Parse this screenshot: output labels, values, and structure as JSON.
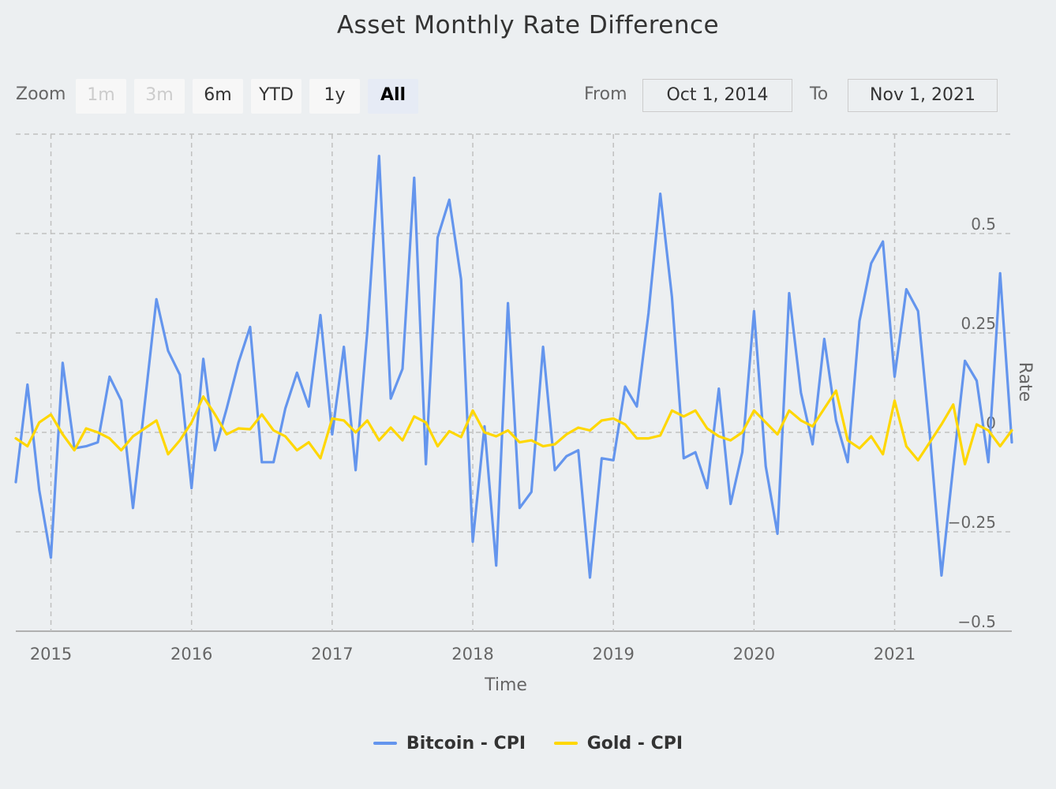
{
  "title": "Asset Monthly Rate Difference",
  "range_selector": {
    "zoom_label": "Zoom",
    "buttons": [
      {
        "label": "1m",
        "state": "disabled"
      },
      {
        "label": "3m",
        "state": "disabled"
      },
      {
        "label": "6m",
        "state": "normal"
      },
      {
        "label": "YTD",
        "state": "normal"
      },
      {
        "label": "1y",
        "state": "normal"
      },
      {
        "label": "All",
        "state": "selected"
      }
    ],
    "from_label": "From",
    "from_value": "Oct 1, 2014",
    "to_label": "To",
    "to_value": "Nov 1, 2021"
  },
  "colors": {
    "bitcoin": "#6495ed",
    "gold": "#ffd700",
    "grid": "#c0c0c0",
    "axis_text": "#666666"
  },
  "chart_data": {
    "type": "line",
    "title": "Asset Monthly Rate Difference",
    "xlabel": "Time",
    "ylabel": "Rate",
    "x_start": "2014-10",
    "x_end": "2021-11",
    "x_ticks": [
      "2015",
      "2016",
      "2017",
      "2018",
      "2019",
      "2020",
      "2021"
    ],
    "y_ticks": [
      -0.5,
      -0.25,
      0,
      0.25,
      0.5
    ],
    "y_tick_labels": [
      "−0.5",
      "−0.25",
      "0",
      "0.25",
      "0.5"
    ],
    "ylim": [
      -0.5,
      0.75
    ],
    "grid": true,
    "legend_position": "bottom",
    "series": [
      {
        "name": "Bitcoin - CPI",
        "x": [
          "2014-10",
          "2014-11",
          "2014-12",
          "2015-01",
          "2015-02",
          "2015-03",
          "2015-04",
          "2015-05",
          "2015-06",
          "2015-07",
          "2015-08",
          "2015-09",
          "2015-10",
          "2015-11",
          "2015-12",
          "2016-01",
          "2016-02",
          "2016-03",
          "2016-04",
          "2016-05",
          "2016-06",
          "2016-07",
          "2016-08",
          "2016-09",
          "2016-10",
          "2016-11",
          "2016-12",
          "2017-01",
          "2017-02",
          "2017-03",
          "2017-04",
          "2017-05",
          "2017-06",
          "2017-07",
          "2017-08",
          "2017-09",
          "2017-10",
          "2017-11",
          "2017-12",
          "2018-01",
          "2018-02",
          "2018-03",
          "2018-04",
          "2018-05",
          "2018-06",
          "2018-07",
          "2018-08",
          "2018-09",
          "2018-10",
          "2018-11",
          "2018-12",
          "2019-01",
          "2019-02",
          "2019-03",
          "2019-04",
          "2019-05",
          "2019-06",
          "2019-07",
          "2019-08",
          "2019-09",
          "2019-10",
          "2019-11",
          "2019-12",
          "2020-01",
          "2020-02",
          "2020-03",
          "2020-04",
          "2020-05",
          "2020-06",
          "2020-07",
          "2020-08",
          "2020-09",
          "2020-10",
          "2020-11",
          "2020-12",
          "2021-01",
          "2021-02",
          "2021-03",
          "2021-04",
          "2021-05",
          "2021-06",
          "2021-07",
          "2021-08",
          "2021-09",
          "2021-10",
          "2021-11"
        ],
        "values": [
          -0.125,
          0.12,
          -0.145,
          -0.315,
          0.175,
          -0.04,
          -0.035,
          -0.025,
          0.14,
          0.08,
          -0.19,
          0.07,
          0.335,
          0.205,
          0.145,
          -0.14,
          0.185,
          -0.045,
          0.06,
          0.175,
          0.265,
          -0.075,
          -0.075,
          0.06,
          0.15,
          0.065,
          0.295,
          -0.005,
          0.215,
          -0.095,
          0.255,
          0.695,
          0.085,
          0.16,
          0.64,
          -0.08,
          0.49,
          0.585,
          0.385,
          -0.275,
          0.015,
          -0.335,
          0.325,
          -0.19,
          -0.15,
          0.215,
          -0.095,
          -0.06,
          -0.045,
          -0.365,
          -0.065,
          -0.07,
          0.115,
          0.065,
          0.3,
          0.6,
          0.34,
          -0.065,
          -0.05,
          -0.14,
          0.11,
          -0.18,
          -0.05,
          0.305,
          -0.085,
          -0.255,
          0.35,
          0.1,
          -0.03,
          0.235,
          0.03,
          -0.075,
          0.28,
          0.425,
          0.48,
          0.14,
          0.36,
          0.305,
          -0.005,
          -0.36,
          -0.085,
          0.18,
          0.13,
          -0.075,
          0.4,
          -0.025
        ]
      },
      {
        "name": "Gold - CPI",
        "x": [
          "2014-10",
          "2014-11",
          "2014-12",
          "2015-01",
          "2015-02",
          "2015-03",
          "2015-04",
          "2015-05",
          "2015-06",
          "2015-07",
          "2015-08",
          "2015-09",
          "2015-10",
          "2015-11",
          "2015-12",
          "2016-01",
          "2016-02",
          "2016-03",
          "2016-04",
          "2016-05",
          "2016-06",
          "2016-07",
          "2016-08",
          "2016-09",
          "2016-10",
          "2016-11",
          "2016-12",
          "2017-01",
          "2017-02",
          "2017-03",
          "2017-04",
          "2017-05",
          "2017-06",
          "2017-07",
          "2017-08",
          "2017-09",
          "2017-10",
          "2017-11",
          "2017-12",
          "2018-01",
          "2018-02",
          "2018-03",
          "2018-04",
          "2018-05",
          "2018-06",
          "2018-07",
          "2018-08",
          "2018-09",
          "2018-10",
          "2018-11",
          "2018-12",
          "2019-01",
          "2019-02",
          "2019-03",
          "2019-04",
          "2019-05",
          "2019-06",
          "2019-07",
          "2019-08",
          "2019-09",
          "2019-10",
          "2019-11",
          "2019-12",
          "2020-01",
          "2020-02",
          "2020-03",
          "2020-04",
          "2020-05",
          "2020-06",
          "2020-07",
          "2020-08",
          "2020-09",
          "2020-10",
          "2020-11",
          "2020-12",
          "2021-01",
          "2021-02",
          "2021-03",
          "2021-04",
          "2021-05",
          "2021-06",
          "2021-07",
          "2021-08",
          "2021-09",
          "2021-10",
          "2021-11"
        ],
        "values": [
          -0.015,
          -0.035,
          0.025,
          0.045,
          -0.005,
          -0.045,
          0.01,
          0.0,
          -0.015,
          -0.045,
          -0.01,
          0.01,
          0.03,
          -0.055,
          -0.02,
          0.025,
          0.09,
          0.045,
          -0.005,
          0.01,
          0.008,
          0.045,
          0.005,
          -0.01,
          -0.045,
          -0.025,
          -0.065,
          0.035,
          0.03,
          0.0,
          0.03,
          -0.02,
          0.012,
          -0.02,
          0.04,
          0.025,
          -0.035,
          0.003,
          -0.012,
          0.055,
          0.0,
          -0.01,
          0.005,
          -0.025,
          -0.02,
          -0.035,
          -0.03,
          -0.005,
          0.012,
          0.005,
          0.03,
          0.035,
          0.02,
          -0.015,
          -0.015,
          -0.008,
          0.055,
          0.04,
          0.055,
          0.01,
          -0.01,
          -0.02,
          0.0,
          0.055,
          0.025,
          -0.005,
          0.055,
          0.03,
          0.015,
          0.06,
          0.105,
          -0.02,
          -0.04,
          -0.01,
          -0.055,
          0.08,
          -0.035,
          -0.07,
          -0.025,
          0.02,
          0.07,
          -0.08,
          0.02,
          0.005,
          -0.035,
          0.005
        ]
      }
    ]
  }
}
